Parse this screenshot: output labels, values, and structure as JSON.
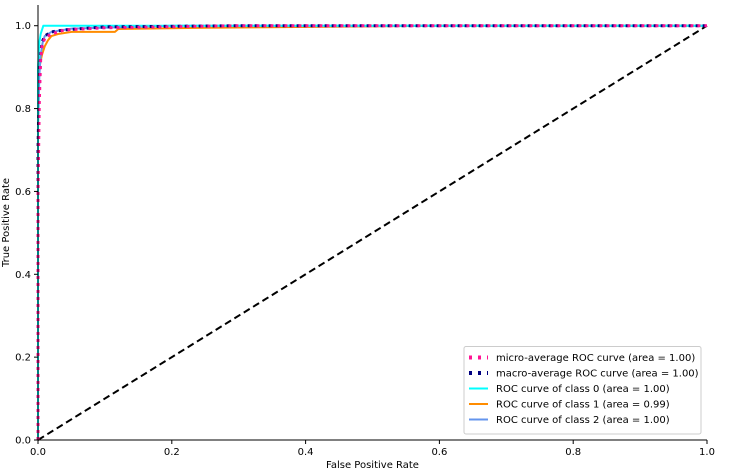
{
  "chart_data": {
    "type": "line",
    "title": "",
    "xlabel": "False Positive Rate",
    "ylabel": "True Positive Rate",
    "xlim": [
      0.0,
      1.0
    ],
    "ylim": [
      0.0,
      1.05
    ],
    "xticks": [
      "0.0",
      "0.2",
      "0.4",
      "0.6",
      "0.8",
      "1.0"
    ],
    "yticks": [
      "0.0",
      "0.2",
      "0.4",
      "0.6",
      "0.8",
      "1.0"
    ],
    "grid": false,
    "legend_position": "lower right",
    "series": [
      {
        "name": "micro-average ROC curve (area = 1.00)",
        "color": "#ff1493",
        "style": "dotted",
        "x": [
          0.0,
          0.0,
          0.002,
          0.004,
          0.006,
          0.01,
          0.02,
          0.04,
          0.1,
          0.3,
          1.0
        ],
        "y": [
          0.0,
          0.6,
          0.82,
          0.92,
          0.95,
          0.97,
          0.98,
          0.99,
          0.995,
          1.0,
          1.0
        ]
      },
      {
        "name": "macro-average ROC curve (area = 1.00)",
        "color": "#000080",
        "style": "dotted",
        "x": [
          0.0,
          0.0,
          0.002,
          0.004,
          0.006,
          0.01,
          0.02,
          0.04,
          0.1,
          0.3,
          1.0
        ],
        "y": [
          0.0,
          0.7,
          0.86,
          0.93,
          0.96,
          0.975,
          0.985,
          0.99,
          0.997,
          1.0,
          1.0
        ]
      },
      {
        "name": "ROC curve of class 0 (area = 1.00)",
        "color": "#00ffff",
        "style": "solid",
        "x": [
          0.0,
          0.0,
          0.002,
          0.004,
          0.006,
          0.008,
          1.0
        ],
        "y": [
          0.0,
          0.9,
          0.96,
          0.98,
          0.99,
          1.0,
          1.0
        ]
      },
      {
        "name": "ROC curve of class 1 (area = 0.99)",
        "color": "#ff8c00",
        "style": "solid",
        "x": [
          0.0,
          0.0,
          0.002,
          0.006,
          0.01,
          0.015,
          0.02,
          0.03,
          0.05,
          0.115,
          0.12,
          0.25,
          0.6,
          1.0
        ],
        "y": [
          0.0,
          0.8,
          0.9,
          0.93,
          0.95,
          0.965,
          0.975,
          0.98,
          0.985,
          0.985,
          0.992,
          0.995,
          1.0,
          1.0
        ]
      },
      {
        "name": "ROC curve of class 2 (area = 1.00)",
        "color": "#6495ed",
        "style": "solid",
        "x": [
          0.0,
          0.0,
          0.002,
          0.004,
          0.007,
          0.01,
          0.02,
          0.05,
          0.2,
          1.0
        ],
        "y": [
          0.0,
          0.75,
          0.88,
          0.93,
          0.96,
          0.975,
          0.985,
          0.993,
          1.0,
          1.0
        ]
      },
      {
        "name": "",
        "color": "#000000",
        "style": "dashed",
        "x": [
          0.0,
          1.0
        ],
        "y": [
          0.0,
          1.0
        ]
      }
    ]
  }
}
